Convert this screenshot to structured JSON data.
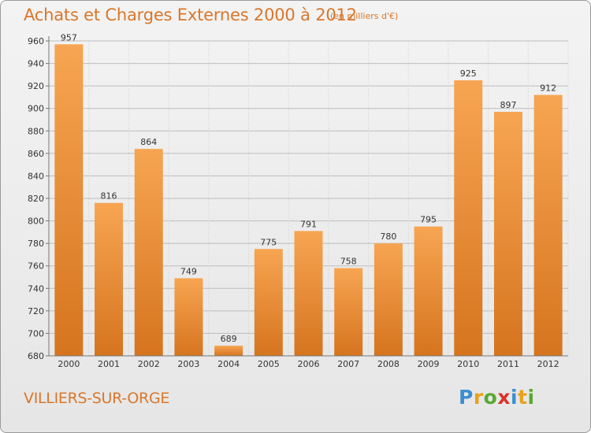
{
  "title": "Achats et Charges Externes 2000 à 2012",
  "subtitle": "(en milliers d'€)",
  "place": "VILLIERS-SUR-ORGE",
  "logo": {
    "letters": [
      "P",
      "r",
      "o",
      "x",
      "i",
      "t",
      "i"
    ],
    "colors": [
      "#3b8fd0",
      "#e8a21a",
      "#5aa832",
      "#d9322a",
      "#3b8fd0",
      "#e8a21a",
      "#5aa832"
    ]
  },
  "colors": {
    "bar_light": "#f7a552",
    "bar_dark": "#d6741f",
    "text": "#d9772a"
  },
  "chart_data": {
    "type": "bar",
    "categories": [
      "2000",
      "2001",
      "2002",
      "2003",
      "2004",
      "2005",
      "2006",
      "2007",
      "2008",
      "2009",
      "2010",
      "2011",
      "2012"
    ],
    "values": [
      957,
      816,
      864,
      749,
      689,
      775,
      791,
      758,
      780,
      795,
      925,
      897,
      912
    ],
    "ylim": [
      680,
      960
    ],
    "yticks": [
      680,
      700,
      720,
      740,
      760,
      780,
      800,
      820,
      840,
      860,
      880,
      900,
      920,
      940,
      960
    ],
    "grid": true
  }
}
